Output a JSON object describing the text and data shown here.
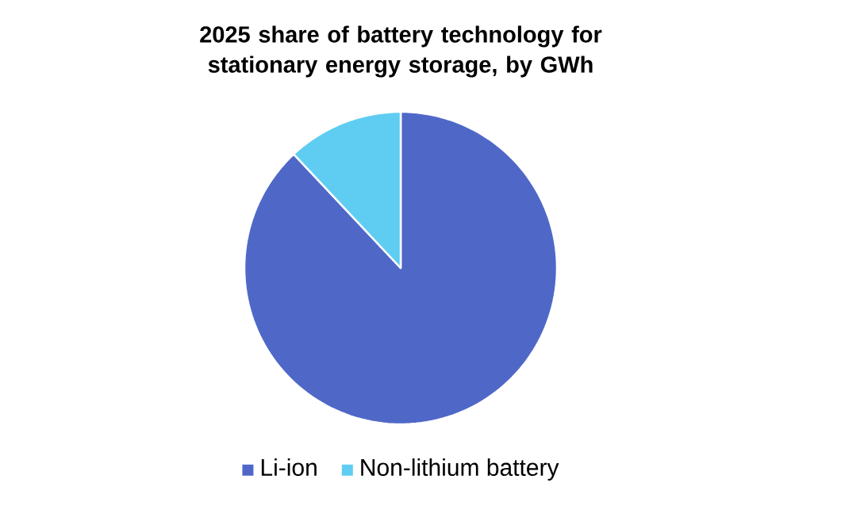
{
  "chart_data": {
    "type": "pie",
    "title": "2025 share of battery technology for stationary energy storage, by GWh",
    "categories": [
      "Li-ion",
      "Non-lithium battery"
    ],
    "values": [
      88,
      12
    ],
    "colors": [
      "#4f68c8",
      "#5fcdf2"
    ],
    "legend": "bottom"
  }
}
